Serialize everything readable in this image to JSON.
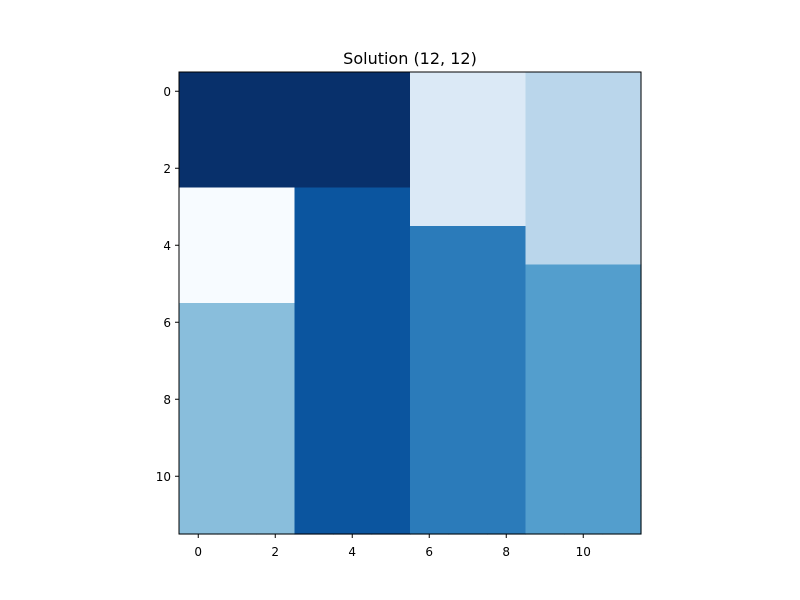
{
  "chart_data": {
    "type": "heatmap",
    "title": "Solution (12, 12)",
    "xlabel": "",
    "ylabel": "",
    "colormap": "Blues",
    "grid": false,
    "origin": "upper",
    "xlim": [
      -0.5,
      11.5
    ],
    "ylim": [
      11.5,
      -0.5
    ],
    "x_ticks": [
      0,
      2,
      4,
      6,
      8,
      10
    ],
    "y_ticks": [
      0,
      2,
      4,
      6,
      8,
      10
    ],
    "colors": {
      "1": "#f7fbff",
      "2": "#dbe9f6",
      "3": "#bad6eb",
      "4": "#89bedc",
      "5": "#539ecd",
      "6": "#2b7bba",
      "7": "#0b559f",
      "8": "#08306b"
    },
    "matrix": [
      [
        8,
        8,
        8,
        8,
        8,
        8,
        2,
        2,
        2,
        3,
        3,
        3
      ],
      [
        8,
        8,
        8,
        8,
        8,
        8,
        2,
        2,
        2,
        3,
        3,
        3
      ],
      [
        8,
        8,
        8,
        8,
        8,
        8,
        2,
        2,
        2,
        3,
        3,
        3
      ],
      [
        1,
        1,
        1,
        7,
        7,
        7,
        2,
        2,
        2,
        3,
        3,
        3
      ],
      [
        1,
        1,
        1,
        7,
        7,
        7,
        6,
        6,
        6,
        3,
        3,
        3
      ],
      [
        1,
        1,
        1,
        7,
        7,
        7,
        6,
        6,
        6,
        5,
        5,
        5
      ],
      [
        4,
        4,
        4,
        7,
        7,
        7,
        6,
        6,
        6,
        5,
        5,
        5
      ],
      [
        4,
        4,
        4,
        7,
        7,
        7,
        6,
        6,
        6,
        5,
        5,
        5
      ],
      [
        4,
        4,
        4,
        7,
        7,
        7,
        6,
        6,
        6,
        5,
        5,
        5
      ],
      [
        4,
        4,
        4,
        7,
        7,
        7,
        6,
        6,
        6,
        5,
        5,
        5
      ],
      [
        4,
        4,
        4,
        7,
        7,
        7,
        6,
        6,
        6,
        5,
        5,
        5
      ],
      [
        4,
        4,
        4,
        7,
        7,
        7,
        6,
        6,
        6,
        5,
        5,
        5
      ]
    ]
  }
}
